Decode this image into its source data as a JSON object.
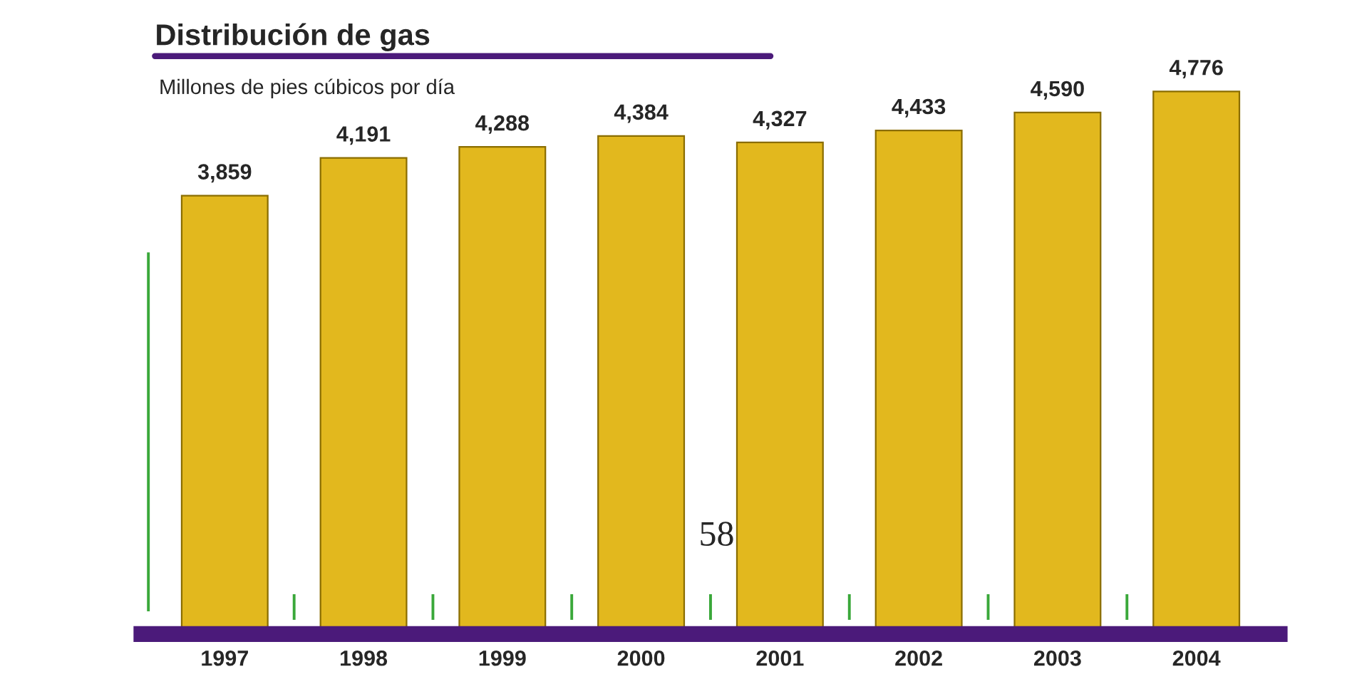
{
  "chart_data": {
    "type": "bar",
    "title": "Distribución de gas",
    "subtitle": "Millones de pies cúbicos por día",
    "categories": [
      "1997",
      "1998",
      "1999",
      "2000",
      "2001",
      "2002",
      "2003",
      "2004"
    ],
    "values": [
      3859,
      4191,
      4288,
      4384,
      4327,
      4433,
      4590,
      4776
    ],
    "value_labels": [
      "3,859",
      "4,191",
      "4,288",
      "4,384",
      "4,327",
      "4,433",
      "4,590",
      "4,776"
    ],
    "color": "#e2b81e",
    "tick_labels": "x",
    "grid": false,
    "legend": false,
    "annotations": [
      "58"
    ]
  }
}
